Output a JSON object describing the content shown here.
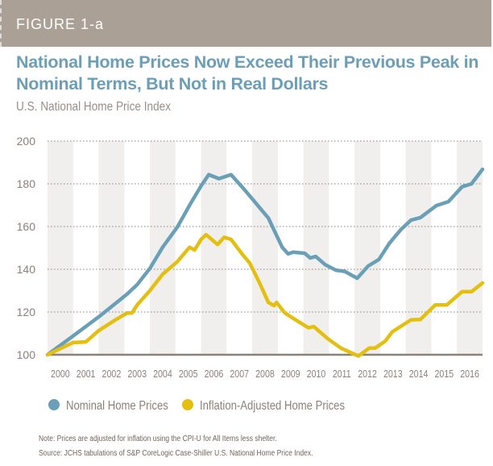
{
  "header": {
    "figure_label": "FIGURE 1-a"
  },
  "title": "National Home Prices Now Exceed Their Previous Peak in Nominal Terms, But Not in Real Dollars",
  "subtitle": "U.S. National Home Price Index",
  "notes": {
    "note": "Note: Prices are adjusted for inflation using the CPI-U for All Items less shelter.",
    "source": "Source: JCHS tabulations of S&P CoreLogic Case-Shiller U.S. National Home Price Index."
  },
  "chart_data": {
    "type": "line",
    "title": "",
    "xlabel": "",
    "ylabel": "",
    "ylim": [
      100,
      200
    ],
    "xlim": [
      2000,
      2017
    ],
    "yticks": [
      100,
      120,
      140,
      160,
      180,
      200
    ],
    "xtick_labels": [
      "2000",
      "2001",
      "2002",
      "2003",
      "2004",
      "2005",
      "2006",
      "2007",
      "2008",
      "2009",
      "2010",
      "2011",
      "2012",
      "2013",
      "2014",
      "2015",
      "2016"
    ],
    "grid": "horizontal dotted, alternating year bands",
    "legend_position": "bottom",
    "series": [
      {
        "name": "Nominal Home Prices",
        "color": "#6a9fb8",
        "x": [
          2000.0,
          2001.0,
          2002.0,
          2003.1,
          2003.5,
          2004.0,
          2004.5,
          2005.07,
          2005.6,
          2006.0,
          2006.3,
          2006.7,
          2007.17,
          2007.6,
          2008.0,
          2008.63,
          2009.17,
          2009.4,
          2009.6,
          2010.05,
          2010.27,
          2010.48,
          2010.85,
          2011.27,
          2011.62,
          2012.1,
          2012.53,
          2012.95,
          2013.36,
          2013.8,
          2014.2,
          2014.57,
          2015.2,
          2015.67,
          2016.2,
          2016.57,
          2017.0
        ],
        "values": [
          100,
          108.8,
          117.7,
          128.3,
          132.8,
          140.4,
          150.3,
          159.7,
          171,
          179,
          184.3,
          182.4,
          184.3,
          178.6,
          173,
          164,
          150.3,
          147.2,
          148,
          147.5,
          145.3,
          146,
          142.2,
          139.6,
          139,
          135.8,
          141.5,
          144.6,
          152.2,
          158.5,
          163,
          164.2,
          169.8,
          171.7,
          178.6,
          180,
          186.8
        ]
      },
      {
        "name": "Inflation-Adjusted Home Prices",
        "color": "#e5bf0f",
        "x": [
          2000.0,
          2001.0,
          2001.5,
          2002.0,
          2002.65,
          2003.1,
          2003.3,
          2003.5,
          2004.0,
          2004.5,
          2005.07,
          2005.55,
          2005.75,
          2006.0,
          2006.2,
          2006.65,
          2006.9,
          2007.17,
          2007.6,
          2007.9,
          2008.3,
          2008.63,
          2008.85,
          2008.95,
          2009.27,
          2009.7,
          2010.2,
          2010.4,
          2010.95,
          2011.47,
          2012.15,
          2012.57,
          2012.8,
          2013.2,
          2013.47,
          2014.2,
          2014.57,
          2015.15,
          2015.6,
          2016.2,
          2016.57,
          2017.0
        ],
        "values": [
          100,
          105.7,
          106,
          111.3,
          116.3,
          119.5,
          119.5,
          123.3,
          130,
          137.7,
          143.5,
          150.3,
          149,
          154,
          156.2,
          151.6,
          155,
          154,
          147.2,
          143,
          133.3,
          124.5,
          123,
          124.5,
          119.6,
          116.3,
          112.6,
          113.2,
          107.5,
          103.1,
          99.4,
          103.1,
          103.1,
          106.4,
          110.7,
          116.3,
          116.5,
          123.3,
          123.3,
          129.5,
          129.5,
          133.6
        ]
      }
    ]
  }
}
